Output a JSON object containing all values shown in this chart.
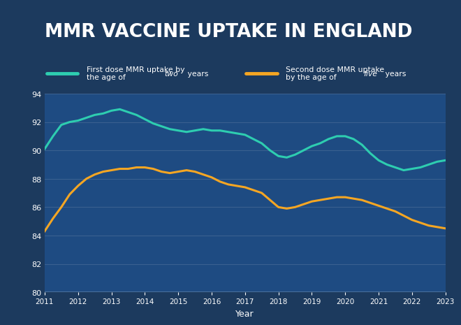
{
  "title": "MMR VACCINE UPTAKE IN ENGLAND",
  "title_color": "#ffffff",
  "title_bg_color": "#1a1a2e",
  "chart_bg_color": "#1c3a5e",
  "plot_bg_color": "#1e4b82",
  "legend_bg_color": "#1a3358",
  "grid_color": "#3a6090",
  "xlabel": "Year",
  "ylim": [
    80,
    94
  ],
  "yticks": [
    80,
    82,
    84,
    86,
    88,
    90,
    92,
    94
  ],
  "line1_color": "#2ecdb0",
  "line2_color": "#f5a623",
  "line_width": 2.2,
  "years_first": [
    2011,
    2011.25,
    2011.5,
    2011.75,
    2012,
    2012.25,
    2012.5,
    2012.75,
    2013,
    2013.25,
    2013.5,
    2013.75,
    2014,
    2014.25,
    2014.5,
    2014.75,
    2015,
    2015.25,
    2015.5,
    2015.75,
    2016,
    2016.25,
    2016.5,
    2016.75,
    2017,
    2017.25,
    2017.5,
    2017.75,
    2018,
    2018.25,
    2018.5,
    2018.75,
    2019,
    2019.25,
    2019.5,
    2019.75,
    2020,
    2020.25,
    2020.5,
    2020.75,
    2021,
    2021.25,
    2021.5,
    2021.75,
    2022,
    2022.25,
    2022.5,
    2022.75,
    2023
  ],
  "values_first": [
    90.1,
    91.0,
    91.8,
    92.0,
    92.1,
    92.3,
    92.5,
    92.6,
    92.8,
    92.9,
    92.7,
    92.5,
    92.2,
    91.9,
    91.7,
    91.5,
    91.4,
    91.3,
    91.4,
    91.5,
    91.4,
    91.4,
    91.3,
    91.2,
    91.1,
    90.8,
    90.5,
    90.0,
    89.6,
    89.5,
    89.7,
    90.0,
    90.3,
    90.5,
    90.8,
    91.0,
    91.0,
    90.8,
    90.4,
    89.8,
    89.3,
    89.0,
    88.8,
    88.6,
    88.7,
    88.8,
    89.0,
    89.2,
    89.3
  ],
  "years_second": [
    2011,
    2011.25,
    2011.5,
    2011.75,
    2012,
    2012.25,
    2012.5,
    2012.75,
    2013,
    2013.25,
    2013.5,
    2013.75,
    2014,
    2014.25,
    2014.5,
    2014.75,
    2015,
    2015.25,
    2015.5,
    2015.75,
    2016,
    2016.25,
    2016.5,
    2016.75,
    2017,
    2017.25,
    2017.5,
    2017.75,
    2018,
    2018.25,
    2018.5,
    2018.75,
    2019,
    2019.25,
    2019.5,
    2019.75,
    2020,
    2020.25,
    2020.5,
    2020.75,
    2021,
    2021.25,
    2021.5,
    2021.75,
    2022,
    2022.25,
    2022.5,
    2022.75,
    2023
  ],
  "values_second": [
    84.3,
    85.2,
    86.0,
    86.9,
    87.5,
    88.0,
    88.3,
    88.5,
    88.6,
    88.7,
    88.7,
    88.8,
    88.8,
    88.7,
    88.5,
    88.4,
    88.5,
    88.6,
    88.5,
    88.3,
    88.1,
    87.8,
    87.6,
    87.5,
    87.4,
    87.2,
    87.0,
    86.5,
    86.0,
    85.9,
    86.0,
    86.2,
    86.4,
    86.5,
    86.6,
    86.7,
    86.7,
    86.6,
    86.5,
    86.3,
    86.1,
    85.9,
    85.7,
    85.4,
    85.1,
    84.9,
    84.7,
    84.6,
    84.5
  ],
  "xticks": [
    2011,
    2012,
    2013,
    2014,
    2015,
    2016,
    2017,
    2018,
    2019,
    2020,
    2021,
    2022,
    2023
  ]
}
